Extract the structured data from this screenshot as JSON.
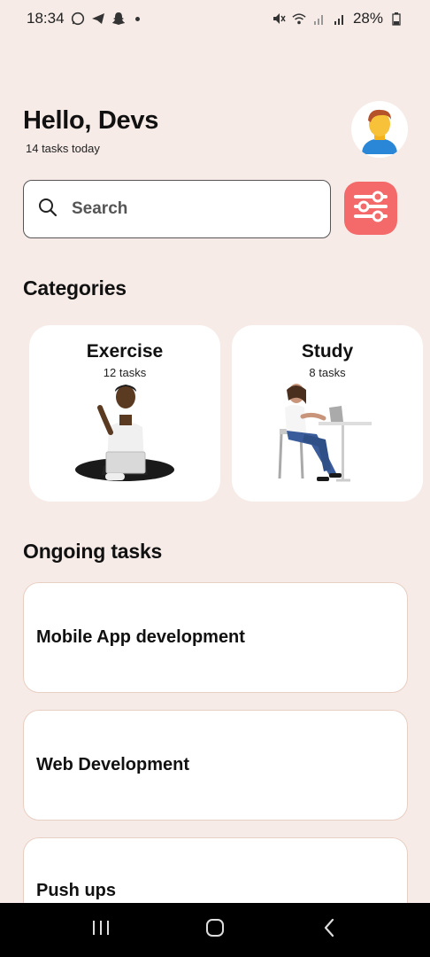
{
  "status_bar": {
    "time": "18:34",
    "battery": "28%",
    "left_icons": [
      "whatsapp-icon",
      "telegram-icon",
      "snapchat-icon",
      "dot-icon"
    ],
    "right_icons": [
      "mute-icon",
      "wifi-icon",
      "signal-icon",
      "signal-icon",
      "battery-icon"
    ]
  },
  "header": {
    "greeting": "Hello, Devs",
    "subtitle": "14 tasks today",
    "avatar_icon": "user-avatar-icon"
  },
  "search": {
    "placeholder": "Search",
    "icon": "search-icon",
    "filter_icon": "sliders-icon"
  },
  "categories": {
    "title": "Categories",
    "items": [
      {
        "title": "Exercise",
        "count": "12 tasks",
        "illustration": "person-with-laptop-illustration"
      },
      {
        "title": "Study",
        "count": "8 tasks",
        "illustration": "person-at-desk-illustration"
      }
    ]
  },
  "ongoing": {
    "title": "Ongoing tasks",
    "items": [
      {
        "label": "Mobile App development"
      },
      {
        "label": "Web Development"
      },
      {
        "label": "Push ups"
      }
    ]
  },
  "colors": {
    "background": "#f6ebe7",
    "accent": "#f46a6a",
    "card": "#ffffff",
    "card_border": "#e8cfc4"
  }
}
